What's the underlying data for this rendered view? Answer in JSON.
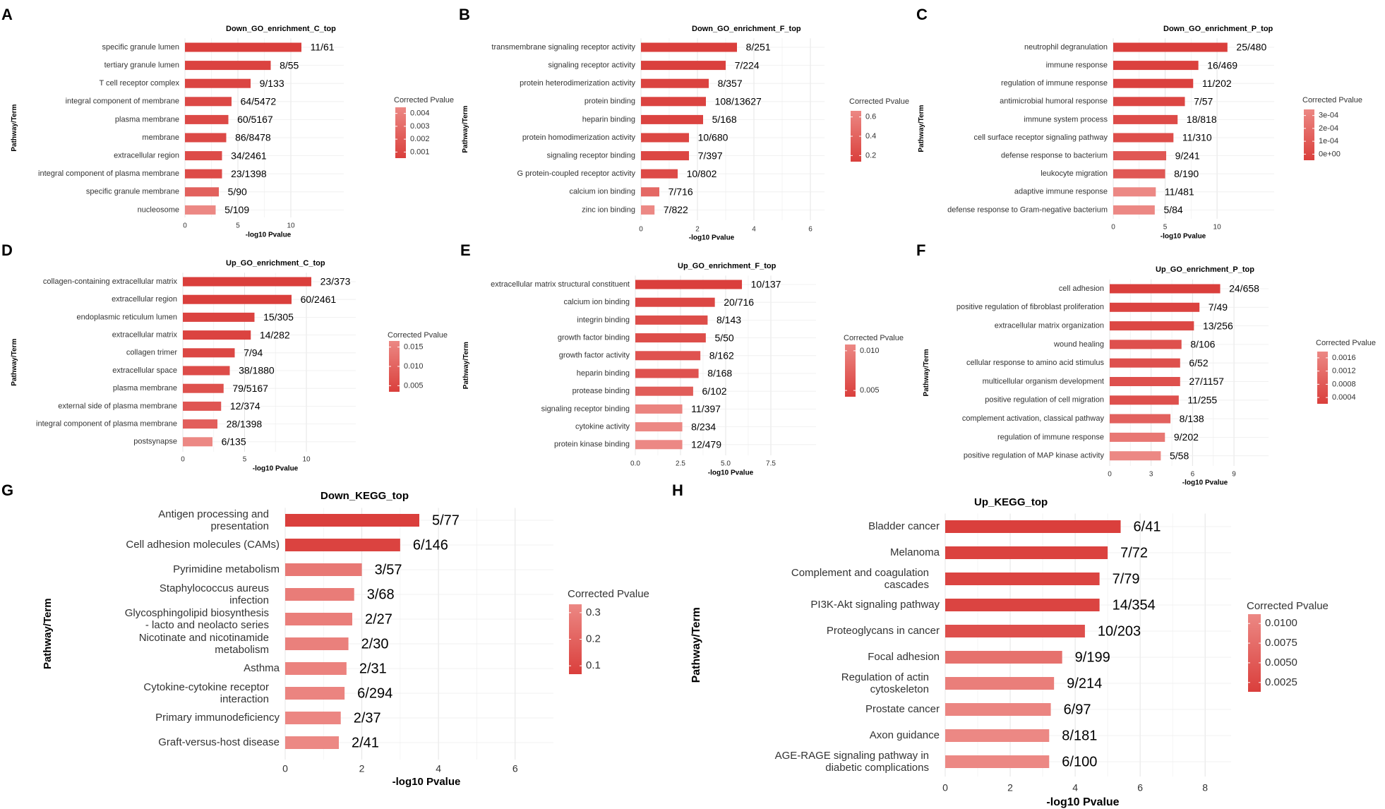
{
  "figure": {
    "colors": {
      "high": "#DA3F3C",
      "low": "#EC8884",
      "grid": "#E4E4E4",
      "text": "#333333",
      "label": "#000000"
    }
  },
  "chart_data": [
    {
      "panel": "A",
      "type": "bar",
      "title": "Down_GO_enrichment_C_top",
      "xlabel": "-log10 Pvalue",
      "ylabel": "Pathway/Term",
      "xlim": [
        0,
        15
      ],
      "xticks": [
        0,
        5,
        10
      ],
      "legend": {
        "title": "Corrected Pvalue",
        "ticks": [
          "0.004",
          "0.003",
          "0.002",
          "0.001"
        ],
        "position": "right"
      },
      "categories": [
        "specific granule lumen",
        "tertiary granule lumen",
        "T cell receptor complex",
        "integral component of membrane",
        "plasma membrane",
        "membrane",
        "extracellular region",
        "integral component of plasma membrane",
        "specific granule membrane",
        "nucleosome"
      ],
      "values": [
        11.0,
        8.1,
        6.2,
        4.4,
        4.1,
        3.9,
        3.5,
        3.5,
        3.2,
        2.9
      ],
      "labels": [
        "11/61",
        "8/55",
        "9/133",
        "64/5472",
        "60/5167",
        "86/8478",
        "34/2461",
        "23/1398",
        "5/90",
        "5/109"
      ],
      "pvalue": [
        0.0003,
        0.0005,
        0.0006,
        0.0008,
        0.0008,
        0.0008,
        0.0009,
        0.0009,
        0.002,
        0.004
      ]
    },
    {
      "panel": "B",
      "type": "bar",
      "title": "Down_GO_enrichment_F_top",
      "xlabel": "-log10 Pvalue",
      "ylabel": "Pathway/Term",
      "xlim": [
        0,
        6.5
      ],
      "xticks": [
        0,
        2,
        4,
        6
      ],
      "legend": {
        "title": "Corrected Pvalue",
        "ticks": [
          "0.6",
          "0.4",
          "0.2"
        ],
        "position": "right"
      },
      "categories": [
        "transmembrane signaling receptor activity",
        "signaling receptor activity",
        "protein heterodimerization activity",
        "protein binding",
        "heparin binding",
        "protein homodimerization activity",
        "signaling receptor binding",
        "G protein-coupled receptor activity",
        "calcium ion binding",
        "zinc ion binding"
      ],
      "values": [
        3.4,
        3.0,
        2.4,
        2.3,
        2.2,
        1.7,
        1.7,
        1.3,
        0.65,
        0.48
      ],
      "labels": [
        "8/251",
        "7/224",
        "8/357",
        "108/13627",
        "5/168",
        "10/680",
        "7/397",
        "10/802",
        "7/716",
        "7/822"
      ],
      "pvalue": [
        0.02,
        0.03,
        0.06,
        0.06,
        0.06,
        0.09,
        0.09,
        0.12,
        0.4,
        0.7
      ]
    },
    {
      "panel": "C",
      "type": "bar",
      "title": "Down_GO_enrichment_P_top",
      "xlabel": "-log10 Pvalue",
      "ylabel": "Pathway/Term",
      "xlim": [
        0,
        15.5
      ],
      "xticks": [
        0,
        5,
        10
      ],
      "legend": {
        "title": "Corrected Pvalue",
        "ticks": [
          "3e-04",
          "2e-04",
          "1e-04",
          "0e+00"
        ],
        "position": "right"
      },
      "categories": [
        "neutrophil degranulation",
        "immune response",
        "regulation of immune response",
        "antimicrobial humoral response",
        "immune system process",
        "cell surface receptor signaling pathway",
        "defense response to bacterium",
        "leukocyte migration",
        "adaptive immune response",
        "defense response to Gram-negative bacterium"
      ],
      "values": [
        11.0,
        8.2,
        7.7,
        6.9,
        6.2,
        5.8,
        5.1,
        5.0,
        4.1,
        4.0
      ],
      "labels": [
        "25/480",
        "16/469",
        "11/202",
        "7/57",
        "18/818",
        "11/310",
        "9/241",
        "8/190",
        "11/481",
        "5/84"
      ],
      "pvalue": [
        0.0,
        1e-05,
        1e-05,
        3e-05,
        5e-05,
        6e-05,
        0.0001,
        0.0001,
        0.0003,
        0.0003
      ]
    },
    {
      "panel": "D",
      "type": "bar",
      "title": "Up_GO_enrichment_C_top",
      "xlabel": "-log10 Pvalue",
      "ylabel": "Pathway/Term",
      "xlim": [
        0,
        14
      ],
      "xticks": [
        0,
        5,
        10
      ],
      "legend": {
        "title": "Corrected Pvalue",
        "ticks": [
          "0.015",
          "0.010",
          "0.005"
        ],
        "position": "right"
      },
      "categories": [
        "collagen-containing extracellular matrix",
        "extracellular region",
        "endoplasmic reticulum lumen",
        "extracellular matrix",
        "collagen trimer",
        "extracellular space",
        "plasma membrane",
        "external side of plasma membrane",
        "integral component of plasma membrane",
        "postsynapse"
      ],
      "values": [
        10.4,
        8.8,
        5.8,
        5.5,
        4.2,
        3.8,
        3.3,
        3.1,
        2.8,
        2.4
      ],
      "labels": [
        "23/373",
        "60/2461",
        "15/305",
        "14/282",
        "7/94",
        "38/1880",
        "79/5167",
        "12/374",
        "28/1398",
        "6/135"
      ],
      "pvalue": [
        0.0002,
        0.0003,
        0.001,
        0.001,
        0.002,
        0.003,
        0.004,
        0.005,
        0.007,
        0.016
      ]
    },
    {
      "panel": "E",
      "type": "bar",
      "title": "Up_GO_enrichment_F_top",
      "xlabel": "-log10 Pvalue",
      "ylabel": "Pathway/Term",
      "xlim": [
        0,
        10
      ],
      "xticks": [
        0.0,
        2.5,
        5.0,
        7.5
      ],
      "xticklabels": [
        "0.0",
        "2.5",
        "5.0",
        "7.5"
      ],
      "legend": {
        "title": "Corrected Pvalue",
        "ticks": [
          "0.010",
          "0.005"
        ],
        "position": "right"
      },
      "categories": [
        "extracellular matrix structural constituent",
        "calcium ion binding",
        "integrin binding",
        "growth factor binding",
        "growth factor activity",
        "heparin binding",
        "protease binding",
        "signaling receptor binding",
        "cytokine activity",
        "protein kinase binding"
      ],
      "values": [
        5.9,
        4.4,
        4.0,
        3.9,
        3.6,
        3.5,
        3.2,
        2.6,
        2.6,
        2.6
      ],
      "labels": [
        "10/137",
        "20/716",
        "8/143",
        "5/50",
        "8/162",
        "8/168",
        "6/102",
        "11/397",
        "8/234",
        "12/479"
      ],
      "pvalue": [
        0.0005,
        0.002,
        0.003,
        0.003,
        0.004,
        0.004,
        0.006,
        0.013,
        0.014,
        0.014
      ]
    },
    {
      "panel": "F",
      "type": "bar",
      "title": "Up_GO_enrichment_P_top",
      "xlabel": "-log10 Pvalue",
      "ylabel": "Pathway/Term",
      "xlim": [
        0,
        11.5
      ],
      "xticks": [
        0,
        3,
        6,
        9
      ],
      "legend": {
        "title": "Corrected Pvalue",
        "ticks": [
          "0.0016",
          "0.0012",
          "0.0008",
          "0.0004"
        ],
        "position": "right"
      },
      "categories": [
        "cell adhesion",
        "positive regulation of fibroblast proliferation",
        "extracellular matrix organization",
        "wound healing",
        "cellular response to amino acid stimulus",
        "multicellular organism development",
        "positive regulation of cell migration",
        "complement activation, classical pathway",
        "regulation of immune response",
        "positive regulation of MAP kinase activity"
      ],
      "values": [
        8.0,
        6.5,
        6.1,
        5.2,
        5.1,
        5.1,
        5.0,
        4.4,
        4.0,
        3.7
      ],
      "labels": [
        "24/658",
        "7/49",
        "13/256",
        "8/106",
        "6/52",
        "27/1157",
        "11/255",
        "8/138",
        "9/202",
        "5/58"
      ],
      "pvalue": [
        0.0001,
        0.0002,
        0.0003,
        0.0005,
        0.0005,
        0.0005,
        0.0005,
        0.0009,
        0.0014,
        0.0018
      ]
    },
    {
      "panel": "G",
      "type": "bar",
      "title": "Down_KEGG_top",
      "xlabel": "-log10 Pvalue",
      "ylabel": "Pathway/Term",
      "xlim": [
        0,
        7
      ],
      "xticks": [
        0,
        2,
        4,
        6
      ],
      "legend": {
        "title": "Corrected Pvalue",
        "ticks": [
          "0.3",
          "0.2",
          "0.1"
        ],
        "position": "right"
      },
      "categories": [
        "Antigen processing and presentation",
        "Cell adhesion molecules (CAMs)",
        "Pyrimidine metabolism",
        "Staphylococcus aureus infection",
        "Glycosphingolipid biosynthesis - lacto and neolacto series",
        "Nicotinate and nicotinamide metabolism",
        "Asthma",
        "Cytokine-cytokine receptor interaction",
        "Primary immunodeficiency",
        "Graft-versus-host disease"
      ],
      "values": [
        3.5,
        3.0,
        2.0,
        1.8,
        1.75,
        1.65,
        1.6,
        1.55,
        1.45,
        1.4
      ],
      "labels": [
        "5/77",
        "6/146",
        "3/57",
        "3/68",
        "2/27",
        "2/30",
        "2/31",
        "6/294",
        "2/37",
        "2/41"
      ],
      "pvalue": [
        0.02,
        0.04,
        0.3,
        0.32,
        0.33,
        0.34,
        0.35,
        0.36,
        0.37,
        0.38
      ]
    },
    {
      "panel": "H",
      "type": "bar",
      "title": "Up_KEGG_top",
      "xlabel": "-log10 Pvalue",
      "ylabel": "Pathway/Term",
      "xlim": [
        0,
        8.8
      ],
      "xticks": [
        0,
        2,
        4,
        6,
        8
      ],
      "legend": {
        "title": "Corrected Pvalue",
        "ticks": [
          "0.0100",
          "0.0075",
          "0.0050",
          "0.0025"
        ],
        "position": "right"
      },
      "categories": [
        "Bladder cancer",
        "Melanoma",
        "Complement and coagulation cascades",
        "PI3K-Akt signaling pathway",
        "Proteoglycans in cancer",
        "Focal adhesion",
        "Regulation of actin cytoskeleton",
        "Prostate cancer",
        "Axon guidance",
        "AGE-RAGE signaling pathway in diabetic complications"
      ],
      "values": [
        5.4,
        5.0,
        4.75,
        4.75,
        4.3,
        3.6,
        3.35,
        3.25,
        3.2,
        3.2
      ],
      "labels": [
        "6/41",
        "7/72",
        "7/79",
        "14/354",
        "10/203",
        "9/199",
        "9/214",
        "6/97",
        "8/181",
        "6/100"
      ],
      "pvalue": [
        0.0006,
        0.001,
        0.0013,
        0.0013,
        0.003,
        0.008,
        0.01,
        0.011,
        0.0115,
        0.0115
      ]
    }
  ]
}
